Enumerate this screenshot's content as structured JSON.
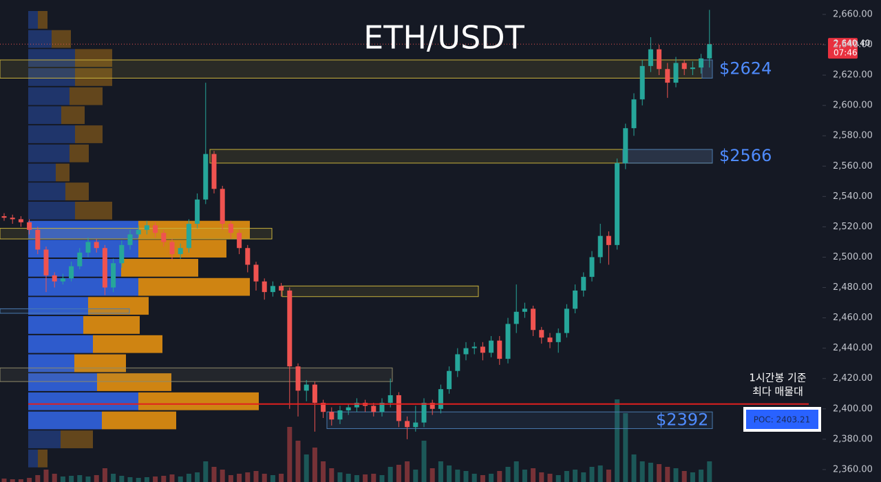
{
  "chart_data": {
    "type": "candlestick",
    "title": "ETH/USDT",
    "up_color": "#26a69a",
    "down_color": "#ef5350",
    "grid": false,
    "ylim": [
      2351.8,
      2669.5
    ],
    "yticks": [
      {
        "value": 2360,
        "label": "2,360.00"
      },
      {
        "value": 2380,
        "label": "2,380.00"
      },
      {
        "value": 2400,
        "label": "2,400.00"
      },
      {
        "value": 2420,
        "label": "2,420.00"
      },
      {
        "value": 2440,
        "label": "2,440.00"
      },
      {
        "value": 2460,
        "label": "2,460.00"
      },
      {
        "value": 2480,
        "label": "2,480.00"
      },
      {
        "value": 2500,
        "label": "2,500.00"
      },
      {
        "value": 2520,
        "label": "2,520.00"
      },
      {
        "value": 2540,
        "label": "2,540.00"
      },
      {
        "value": 2560,
        "label": "2,560.00"
      },
      {
        "value": 2580,
        "label": "2,580.00"
      },
      {
        "value": 2600,
        "label": "2,600.00"
      },
      {
        "value": 2620,
        "label": "2,620.00"
      },
      {
        "value": 2640,
        "label": "2,640.00"
      },
      {
        "value": 2660,
        "label": "2,660.00"
      }
    ],
    "open": [
      2527,
      2526,
      2525,
      2523,
      2518,
      2505,
      2488,
      2484,
      2486,
      2494,
      2503,
      2510,
      2506,
      2480,
      2496,
      2508,
      2515,
      2518,
      2521,
      2516,
      2510,
      2502,
      2506,
      2522,
      2538,
      2568,
      2545,
      2522,
      2516,
      2506,
      2495,
      2484,
      2477,
      2481,
      2478,
      2428,
      2412,
      2416,
      2404,
      2398,
      2393,
      2399,
      2401,
      2404,
      2402,
      2398,
      2404,
      2409,
      2392,
      2388,
      2391,
      2404,
      2400,
      2413,
      2425,
      2436,
      2440,
      2441,
      2437,
      2445,
      2433,
      2456,
      2464,
      2466,
      2452,
      2447,
      2444,
      2450,
      2466,
      2478,
      2487,
      2500,
      2514,
      2508,
      2562,
      2585,
      2604,
      2626,
      2637,
      2624,
      2615,
      2628,
      2624,
      2625,
      2631
    ],
    "high": [
      2529,
      2528,
      2527,
      2525,
      2520,
      2507,
      2490,
      2489,
      2497,
      2506,
      2513,
      2512,
      2508,
      2499,
      2511,
      2518,
      2521,
      2524,
      2523,
      2518,
      2512,
      2509,
      2525,
      2542,
      2615,
      2570,
      2547,
      2524,
      2518,
      2508,
      2497,
      2486,
      2484,
      2483,
      2480,
      2430,
      2419,
      2418,
      2406,
      2401,
      2402,
      2403,
      2407,
      2406,
      2404,
      2407,
      2420,
      2411,
      2395,
      2402,
      2407,
      2406,
      2416,
      2428,
      2440,
      2444,
      2444,
      2444,
      2448,
      2448,
      2460,
      2482,
      2470,
      2468,
      2454,
      2450,
      2453,
      2469,
      2482,
      2490,
      2504,
      2522,
      2517,
      2565,
      2588,
      2608,
      2630,
      2645,
      2640,
      2628,
      2632,
      2630,
      2629,
      2634,
      2663
    ],
    "low": [
      2524,
      2522,
      2520,
      2515,
      2502,
      2477,
      2480,
      2482,
      2484,
      2492,
      2500,
      2503,
      2475,
      2477,
      2493,
      2505,
      2513,
      2515,
      2513,
      2507,
      2498,
      2499,
      2503,
      2519,
      2535,
      2542,
      2518,
      2512,
      2502,
      2490,
      2478,
      2472,
      2474,
      2474,
      2400,
      2395,
      2405,
      2385,
      2394,
      2389,
      2390,
      2396,
      2398,
      2398,
      2395,
      2395,
      2401,
      2388,
      2380,
      2385,
      2388,
      2396,
      2397,
      2410,
      2421,
      2432,
      2436,
      2432,
      2434,
      2429,
      2430,
      2450,
      2460,
      2448,
      2443,
      2440,
      2437,
      2447,
      2463,
      2474,
      2484,
      2496,
      2495,
      2505,
      2558,
      2580,
      2600,
      2622,
      2620,
      2605,
      2612,
      2620,
      2620,
      2621,
      2625
    ],
    "close": [
      2526,
      2525,
      2523,
      2518,
      2505,
      2488,
      2484,
      2486,
      2494,
      2503,
      2510,
      2506,
      2480,
      2496,
      2508,
      2515,
      2518,
      2521,
      2516,
      2510,
      2502,
      2506,
      2522,
      2538,
      2568,
      2545,
      2522,
      2516,
      2506,
      2495,
      2484,
      2477,
      2481,
      2478,
      2428,
      2412,
      2416,
      2404,
      2398,
      2393,
      2399,
      2401,
      2404,
      2402,
      2398,
      2404,
      2409,
      2392,
      2388,
      2391,
      2404,
      2400,
      2413,
      2425,
      2436,
      2440,
      2441,
      2437,
      2445,
      2433,
      2456,
      2464,
      2466,
      2452,
      2447,
      2444,
      2450,
      2466,
      2478,
      2487,
      2500,
      2514,
      2508,
      2562,
      2585,
      2604,
      2626,
      2637,
      2624,
      2615,
      2628,
      2624,
      2625,
      2631,
      2640.4
    ],
    "volume": [
      5,
      4,
      4,
      6,
      10,
      18,
      12,
      8,
      9,
      10,
      8,
      10,
      20,
      12,
      9,
      7,
      6,
      7,
      8,
      9,
      11,
      8,
      12,
      14,
      30,
      22,
      18,
      10,
      12,
      14,
      16,
      12,
      10,
      12,
      80,
      60,
      40,
      50,
      30,
      20,
      14,
      12,
      10,
      11,
      12,
      10,
      22,
      25,
      30,
      18,
      60,
      20,
      30,
      24,
      18,
      16,
      12,
      10,
      12,
      16,
      22,
      30,
      18,
      20,
      14,
      12,
      10,
      16,
      18,
      14,
      22,
      24,
      18,
      120,
      100,
      40,
      30,
      28,
      26,
      22,
      20,
      16,
      14,
      18,
      30
    ],
    "volume_profile": {
      "buy_color": "#2f5fd6",
      "sell_color": "#d98a12",
      "value_area": [
        2386,
        2524
      ],
      "levels": [
        2656.4,
        2643.8,
        2631.3,
        2618.7,
        2606.1,
        2593.6,
        2581.0,
        2568.4,
        2555.8,
        2543.3,
        2530.7,
        2518.1,
        2505.6,
        2493.0,
        2480.4,
        2467.9,
        2455.3,
        2442.7,
        2430.1,
        2417.6,
        2405.0,
        2392.4,
        2379.9,
        2367.3
      ],
      "buy": [
        14,
        34,
        68,
        68,
        60,
        48,
        68,
        60,
        40,
        54,
        68,
        160,
        160,
        135,
        160,
        87,
        80,
        94,
        67,
        100,
        160,
        107,
        47,
        14
      ],
      "sell": [
        14,
        28,
        54,
        54,
        48,
        34,
        40,
        28,
        20,
        34,
        54,
        162,
        128,
        112,
        162,
        88,
        82,
        101,
        75,
        108,
        175,
        108,
        47,
        14
      ]
    },
    "zones": [
      {
        "low": 2618,
        "high": 2630,
        "label": "$2624"
      },
      {
        "low": 2562,
        "high": 2571,
        "label": "$2566"
      },
      {
        "low": 2387,
        "high": 2398,
        "label": "$2392"
      },
      {
        "low": 2512,
        "high": 2519
      },
      {
        "low": 2474,
        "high": 2481
      },
      {
        "low": 2463,
        "high": 2466
      },
      {
        "low": 2418,
        "high": 2427
      }
    ],
    "poc": 2403.21,
    "poc_label": "POC: 2403.21",
    "poc_note": [
      "1시간봉 기준",
      "최다 매물대"
    ],
    "last_price": 2640.4,
    "last_price_label": "2,640.40",
    "countdown": "07:46"
  }
}
